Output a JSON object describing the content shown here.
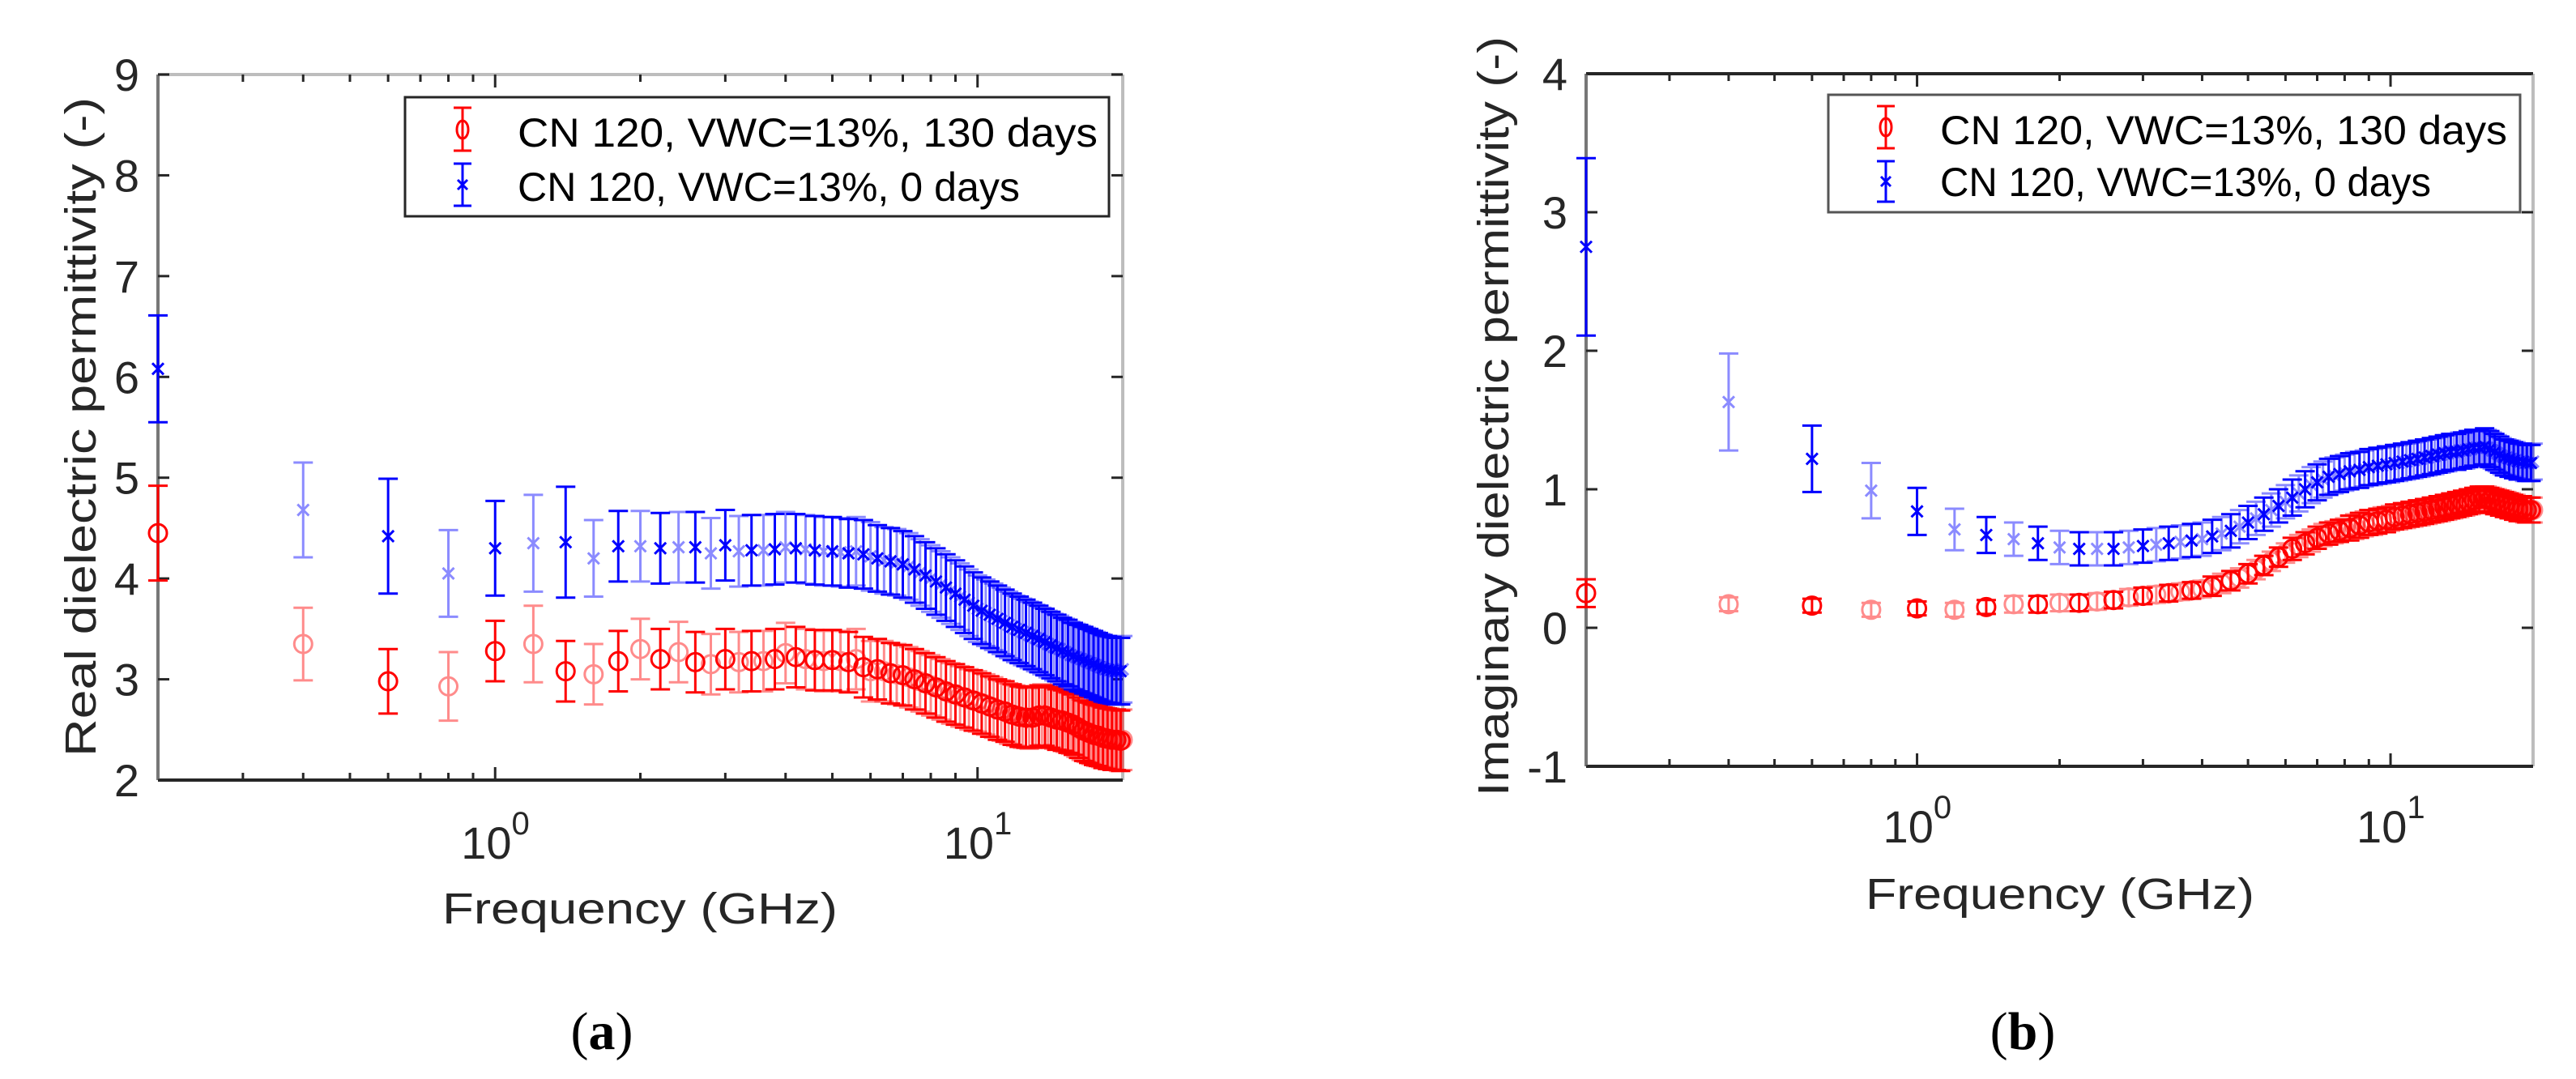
{
  "figure": {
    "captions": [
      {
        "open": "(",
        "letter": "a",
        "close": ")"
      },
      {
        "open": "(",
        "letter": "b",
        "close": ")"
      }
    ]
  },
  "colors": {
    "series_130_days": "#ff0000",
    "series_0_days": "#0000ff",
    "axis": "#262626",
    "frame": "#9a9a9a"
  },
  "chart_data": [
    {
      "type": "scatter",
      "title": "",
      "xlabel": "Frequency (GHz)",
      "ylabel": "Real dielectric permittivity (-)",
      "xscale": "log",
      "xlim": [
        0.2,
        20
      ],
      "ylim": [
        2,
        9
      ],
      "yticks": [
        2,
        3,
        4,
        5,
        6,
        7,
        8,
        9
      ],
      "xticks": [
        {
          "value": 1,
          "base": "10",
          "exp": "0"
        },
        {
          "value": 10,
          "base": "10",
          "exp": "1"
        }
      ],
      "grid": false,
      "legend_position": "top-right",
      "x": [
        0.2,
        0.4,
        0.6,
        0.8,
        1.0,
        1.2,
        1.4,
        1.6,
        1.8,
        2.0,
        2.2,
        2.4,
        2.6,
        2.8,
        3.0,
        3.2,
        3.4,
        3.6,
        3.8,
        4.0,
        4.2,
        4.4,
        4.6,
        4.8,
        5.0,
        5.2,
        5.4,
        5.6,
        5.8,
        6.0,
        6.2,
        6.4,
        6.6,
        6.8,
        7.0,
        7.2,
        7.4,
        7.6,
        7.8,
        8.0,
        8.2,
        8.4,
        8.6,
        8.8,
        9.0,
        9.2,
        9.4,
        9.6,
        9.8,
        10.0,
        10.2,
        10.4,
        10.6,
        10.8,
        11.0,
        11.2,
        11.4,
        11.6,
        11.8,
        12.0,
        12.2,
        12.4,
        12.6,
        12.8,
        13.0,
        13.2,
        13.4,
        13.6,
        13.8,
        14.0,
        14.2,
        14.4,
        14.6,
        14.8,
        15.0,
        15.2,
        15.4,
        15.6,
        15.8,
        16.0,
        16.2,
        16.4,
        16.6,
        16.8,
        17.0,
        17.2,
        17.4,
        17.6,
        17.8,
        18.0,
        18.2,
        18.4,
        18.6,
        18.8,
        19.0,
        19.2,
        19.4,
        19.6,
        19.8,
        20.0
      ],
      "series": [
        {
          "name": "CN 120, VWC=13%, 130 days",
          "color": "#ff0000",
          "marker": "circle",
          "values": [
            4.45,
            3.35,
            2.98,
            2.93,
            3.28,
            3.35,
            3.08,
            3.05,
            3.18,
            3.3,
            3.2,
            3.27,
            3.17,
            3.15,
            3.2,
            3.17,
            3.18,
            3.18,
            3.2,
            3.26,
            3.22,
            3.2,
            3.19,
            3.18,
            3.19,
            3.18,
            3.17,
            3.2,
            3.12,
            3.08,
            3.1,
            3.08,
            3.06,
            3.05,
            3.04,
            3.02,
            3.0,
            2.98,
            2.96,
            2.94,
            2.92,
            2.9,
            2.88,
            2.86,
            2.85,
            2.83,
            2.82,
            2.8,
            2.79,
            2.78,
            2.76,
            2.75,
            2.73,
            2.72,
            2.7,
            2.69,
            2.68,
            2.66,
            2.65,
            2.64,
            2.63,
            2.62,
            2.62,
            2.61,
            2.62,
            2.63,
            2.64,
            2.65,
            2.64,
            2.63,
            2.62,
            2.61,
            2.6,
            2.6,
            2.59,
            2.58,
            2.57,
            2.56,
            2.55,
            2.53,
            2.52,
            2.5,
            2.49,
            2.48,
            2.47,
            2.46,
            2.45,
            2.44,
            2.44,
            2.43,
            2.42,
            2.42,
            2.41,
            2.41,
            2.4,
            2.4,
            2.4,
            2.39,
            2.39,
            2.4
          ],
          "error": [
            0.47,
            0.36,
            0.32,
            0.34,
            0.3,
            0.38,
            0.3,
            0.3,
            0.3,
            0.3,
            0.3,
            0.3,
            0.3,
            0.3,
            0.3,
            0.3,
            0.3,
            0.3,
            0.3,
            0.3,
            0.3,
            0.3,
            0.3,
            0.3,
            0.3,
            0.3,
            0.3,
            0.3,
            0.3,
            0.3,
            0.3,
            0.3,
            0.3,
            0.3,
            0.3,
            0.3,
            0.3,
            0.3,
            0.3,
            0.3,
            0.3,
            0.3,
            0.3,
            0.3,
            0.3,
            0.3,
            0.3,
            0.3,
            0.3,
            0.3,
            0.3,
            0.3,
            0.3,
            0.3,
            0.3,
            0.3,
            0.3,
            0.3,
            0.3,
            0.3,
            0.3,
            0.3,
            0.3,
            0.3,
            0.3,
            0.3,
            0.3,
            0.3,
            0.3,
            0.3,
            0.3,
            0.3,
            0.3,
            0.3,
            0.3,
            0.3,
            0.3,
            0.3,
            0.3,
            0.3,
            0.3,
            0.3,
            0.3,
            0.3,
            0.3,
            0.3,
            0.3,
            0.3,
            0.3,
            0.3,
            0.3,
            0.3,
            0.3,
            0.3,
            0.3,
            0.3,
            0.3,
            0.3,
            0.3,
            0.3
          ]
        },
        {
          "name": "CN 120, VWC=13%, 0 days",
          "color": "#0000ff",
          "marker": "x",
          "values": [
            6.08,
            4.68,
            4.42,
            4.05,
            4.3,
            4.35,
            4.36,
            4.2,
            4.32,
            4.32,
            4.3,
            4.31,
            4.31,
            4.25,
            4.33,
            4.27,
            4.28,
            4.28,
            4.29,
            4.31,
            4.3,
            4.29,
            4.28,
            4.27,
            4.27,
            4.26,
            4.25,
            4.27,
            4.24,
            4.22,
            4.2,
            4.18,
            4.17,
            4.16,
            4.14,
            4.12,
            4.09,
            4.06,
            4.03,
            4.0,
            3.97,
            3.94,
            3.91,
            3.88,
            3.85,
            3.82,
            3.79,
            3.76,
            3.73,
            3.7,
            3.68,
            3.66,
            3.64,
            3.62,
            3.6,
            3.58,
            3.56,
            3.54,
            3.52,
            3.5,
            3.49,
            3.47,
            3.46,
            3.44,
            3.43,
            3.41,
            3.4,
            3.38,
            3.37,
            3.35,
            3.34,
            3.32,
            3.31,
            3.3,
            3.28,
            3.27,
            3.26,
            3.24,
            3.23,
            3.22,
            3.21,
            3.2,
            3.19,
            3.18,
            3.17,
            3.16,
            3.15,
            3.14,
            3.13,
            3.12,
            3.11,
            3.1,
            3.1,
            3.09,
            3.09,
            3.08,
            3.08,
            3.08,
            3.08,
            3.1
          ],
          "error": [
            0.53,
            0.47,
            0.57,
            0.43,
            0.47,
            0.48,
            0.55,
            0.38,
            0.35,
            0.35,
            0.35,
            0.35,
            0.35,
            0.35,
            0.35,
            0.35,
            0.35,
            0.35,
            0.35,
            0.35,
            0.34,
            0.34,
            0.34,
            0.34,
            0.34,
            0.34,
            0.34,
            0.34,
            0.34,
            0.34,
            0.33,
            0.33,
            0.33,
            0.33,
            0.33,
            0.33,
            0.33,
            0.33,
            0.33,
            0.33,
            0.33,
            0.33,
            0.33,
            0.33,
            0.33,
            0.33,
            0.33,
            0.33,
            0.33,
            0.33,
            0.33,
            0.33,
            0.33,
            0.33,
            0.33,
            0.33,
            0.33,
            0.33,
            0.33,
            0.33,
            0.33,
            0.33,
            0.33,
            0.33,
            0.33,
            0.33,
            0.33,
            0.33,
            0.33,
            0.33,
            0.33,
            0.33,
            0.33,
            0.33,
            0.33,
            0.33,
            0.33,
            0.33,
            0.33,
            0.33,
            0.33,
            0.33,
            0.33,
            0.33,
            0.33,
            0.33,
            0.33,
            0.33,
            0.33,
            0.33,
            0.33,
            0.33,
            0.33,
            0.33,
            0.33,
            0.33,
            0.33,
            0.33,
            0.33,
            0.33
          ]
        }
      ]
    },
    {
      "type": "scatter",
      "title": "",
      "xlabel": "Frequency (GHz)",
      "ylabel": "Imaginary dielectric permittivity (-)",
      "xscale": "log",
      "xlim": [
        0.2,
        20
      ],
      "ylim": [
        -1,
        4
      ],
      "yticks": [
        -1,
        0,
        1,
        2,
        3,
        4
      ],
      "xticks": [
        {
          "value": 1,
          "base": "10",
          "exp": "0"
        },
        {
          "value": 10,
          "base": "10",
          "exp": "1"
        }
      ],
      "grid": false,
      "legend_position": "top-right",
      "x": [
        0.2,
        0.4,
        0.6,
        0.8,
        1.0,
        1.2,
        1.4,
        1.6,
        1.8,
        2.0,
        2.2,
        2.4,
        2.6,
        2.8,
        3.0,
        3.2,
        3.4,
        3.6,
        3.8,
        4.0,
        4.2,
        4.4,
        4.6,
        4.8,
        5.0,
        5.2,
        5.4,
        5.6,
        5.8,
        6.0,
        6.2,
        6.4,
        6.6,
        6.8,
        7.0,
        7.2,
        7.4,
        7.6,
        7.8,
        8.0,
        8.2,
        8.4,
        8.6,
        8.8,
        9.0,
        9.2,
        9.4,
        9.6,
        9.8,
        10.0,
        10.2,
        10.4,
        10.6,
        10.8,
        11.0,
        11.2,
        11.4,
        11.6,
        11.8,
        12.0,
        12.2,
        12.4,
        12.6,
        12.8,
        13.0,
        13.2,
        13.4,
        13.6,
        13.8,
        14.0,
        14.2,
        14.4,
        14.6,
        14.8,
        15.0,
        15.2,
        15.4,
        15.6,
        15.8,
        16.0,
        16.2,
        16.4,
        16.6,
        16.8,
        17.0,
        17.2,
        17.4,
        17.6,
        17.8,
        18.0,
        18.2,
        18.4,
        18.6,
        18.8,
        19.0,
        19.2,
        19.4,
        19.6,
        19.8,
        20.0
      ],
      "series": [
        {
          "name": "CN 120, VWC=13%, 130 days",
          "color": "#ff0000",
          "marker": "circle",
          "values": [
            0.25,
            0.17,
            0.16,
            0.13,
            0.14,
            0.13,
            0.15,
            0.17,
            0.17,
            0.18,
            0.18,
            0.19,
            0.2,
            0.22,
            0.23,
            0.24,
            0.25,
            0.26,
            0.27,
            0.28,
            0.3,
            0.32,
            0.34,
            0.36,
            0.39,
            0.42,
            0.45,
            0.48,
            0.51,
            0.54,
            0.57,
            0.59,
            0.61,
            0.63,
            0.65,
            0.67,
            0.68,
            0.69,
            0.7,
            0.71,
            0.72,
            0.73,
            0.74,
            0.75,
            0.76,
            0.76,
            0.77,
            0.78,
            0.78,
            0.79,
            0.8,
            0.8,
            0.81,
            0.81,
            0.82,
            0.82,
            0.83,
            0.83,
            0.84,
            0.84,
            0.85,
            0.85,
            0.86,
            0.86,
            0.87,
            0.87,
            0.88,
            0.88,
            0.89,
            0.89,
            0.9,
            0.9,
            0.91,
            0.91,
            0.92,
            0.92,
            0.93,
            0.93,
            0.93,
            0.93,
            0.92,
            0.92,
            0.91,
            0.91,
            0.9,
            0.9,
            0.89,
            0.89,
            0.88,
            0.88,
            0.87,
            0.87,
            0.86,
            0.86,
            0.86,
            0.85,
            0.85,
            0.85,
            0.85,
            0.85
          ],
          "error": [
            0.1,
            0.05,
            0.05,
            0.05,
            0.05,
            0.05,
            0.05,
            0.06,
            0.06,
            0.06,
            0.06,
            0.06,
            0.06,
            0.06,
            0.06,
            0.06,
            0.06,
            0.06,
            0.06,
            0.06,
            0.07,
            0.07,
            0.07,
            0.07,
            0.07,
            0.07,
            0.07,
            0.07,
            0.07,
            0.07,
            0.08,
            0.08,
            0.08,
            0.08,
            0.08,
            0.08,
            0.08,
            0.08,
            0.08,
            0.08,
            0.09,
            0.09,
            0.09,
            0.09,
            0.09,
            0.09,
            0.09,
            0.09,
            0.09,
            0.09,
            0.09,
            0.09,
            0.09,
            0.09,
            0.09,
            0.09,
            0.09,
            0.09,
            0.09,
            0.09,
            0.09,
            0.09,
            0.09,
            0.09,
            0.09,
            0.09,
            0.09,
            0.09,
            0.09,
            0.09,
            0.09,
            0.09,
            0.09,
            0.09,
            0.09,
            0.09,
            0.09,
            0.09,
            0.09,
            0.09,
            0.09,
            0.09,
            0.09,
            0.09,
            0.09,
            0.09,
            0.09,
            0.09,
            0.09,
            0.09,
            0.09,
            0.09,
            0.09,
            0.09,
            0.09,
            0.09,
            0.09,
            0.09,
            0.09,
            0.09
          ]
        },
        {
          "name": "CN 120, VWC=13%, 0 days",
          "color": "#0000ff",
          "marker": "x",
          "values": [
            2.75,
            1.63,
            1.22,
            0.99,
            0.84,
            0.71,
            0.67,
            0.64,
            0.61,
            0.58,
            0.57,
            0.57,
            0.57,
            0.58,
            0.59,
            0.6,
            0.61,
            0.62,
            0.63,
            0.64,
            0.66,
            0.68,
            0.7,
            0.73,
            0.76,
            0.79,
            0.82,
            0.85,
            0.88,
            0.91,
            0.94,
            0.97,
            1.0,
            1.03,
            1.05,
            1.07,
            1.09,
            1.1,
            1.11,
            1.12,
            1.13,
            1.14,
            1.14,
            1.15,
            1.16,
            1.16,
            1.17,
            1.17,
            1.18,
            1.18,
            1.19,
            1.19,
            1.2,
            1.2,
            1.21,
            1.21,
            1.22,
            1.22,
            1.23,
            1.23,
            1.24,
            1.24,
            1.25,
            1.25,
            1.26,
            1.26,
            1.27,
            1.27,
            1.27,
            1.28,
            1.28,
            1.28,
            1.29,
            1.29,
            1.3,
            1.3,
            1.3,
            1.3,
            1.31,
            1.3,
            1.29,
            1.28,
            1.27,
            1.26,
            1.25,
            1.24,
            1.23,
            1.23,
            1.22,
            1.22,
            1.21,
            1.21,
            1.2,
            1.2,
            1.2,
            1.19,
            1.19,
            1.19,
            1.19,
            1.2
          ],
          "error": [
            0.64,
            0.35,
            0.24,
            0.2,
            0.17,
            0.15,
            0.13,
            0.12,
            0.12,
            0.12,
            0.12,
            0.12,
            0.12,
            0.12,
            0.12,
            0.12,
            0.12,
            0.12,
            0.12,
            0.12,
            0.12,
            0.12,
            0.12,
            0.12,
            0.12,
            0.12,
            0.12,
            0.12,
            0.12,
            0.12,
            0.13,
            0.13,
            0.13,
            0.13,
            0.13,
            0.13,
            0.13,
            0.13,
            0.13,
            0.13,
            0.13,
            0.13,
            0.13,
            0.13,
            0.13,
            0.13,
            0.13,
            0.13,
            0.13,
            0.13,
            0.13,
            0.13,
            0.13,
            0.13,
            0.13,
            0.13,
            0.13,
            0.13,
            0.13,
            0.13,
            0.13,
            0.13,
            0.13,
            0.13,
            0.13,
            0.13,
            0.13,
            0.13,
            0.13,
            0.13,
            0.13,
            0.13,
            0.13,
            0.13,
            0.13,
            0.13,
            0.13,
            0.13,
            0.13,
            0.13,
            0.13,
            0.13,
            0.13,
            0.13,
            0.13,
            0.13,
            0.13,
            0.13,
            0.13,
            0.13,
            0.13,
            0.13,
            0.13,
            0.13,
            0.13,
            0.13,
            0.13,
            0.13,
            0.13,
            0.13
          ]
        }
      ]
    }
  ]
}
